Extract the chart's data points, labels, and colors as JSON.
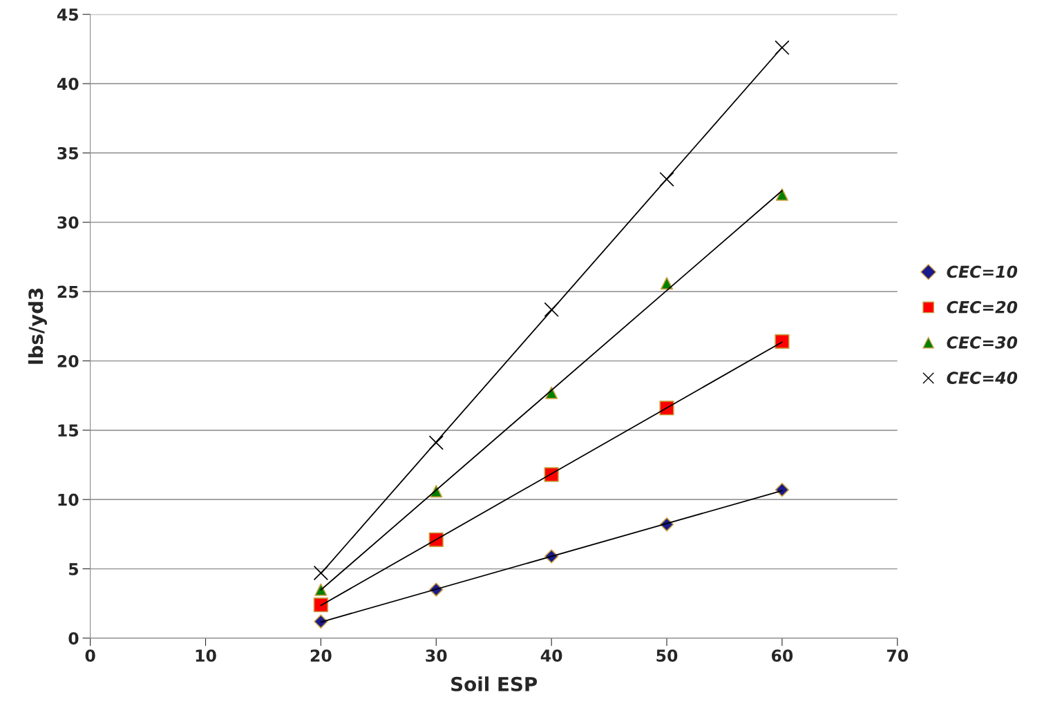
{
  "chart_data": {
    "type": "scatter",
    "xlabel": "Soil ESP",
    "ylabel": "lbs/yd3",
    "xlim": [
      0,
      70
    ],
    "xticks": [
      0,
      10,
      20,
      30,
      40,
      50,
      60,
      70
    ],
    "ylim": [
      0,
      45
    ],
    "yticks": [
      0,
      5,
      10,
      15,
      20,
      25,
      30,
      35,
      40,
      45
    ],
    "grid": "y",
    "legend": "right",
    "series": [
      {
        "name": "CEC=10",
        "color": "#1a1a8c",
        "marker": "diamond",
        "x": [
          20,
          30,
          40,
          50,
          60
        ],
        "values": [
          1.2,
          3.5,
          5.9,
          8.2,
          10.7
        ]
      },
      {
        "name": "CEC=20",
        "color": "#ff0000",
        "marker": "square",
        "x": [
          20,
          30,
          40,
          50,
          60
        ],
        "values": [
          2.4,
          7.1,
          11.8,
          16.6,
          21.4
        ]
      },
      {
        "name": "CEC=30",
        "color": "#008000",
        "marker": "triangle",
        "x": [
          20,
          30,
          40,
          50,
          60
        ],
        "values": [
          3.5,
          10.6,
          17.7,
          25.6,
          32.0
        ]
      },
      {
        "name": "CEC=40",
        "color": "#000000",
        "marker": "cross",
        "x": [
          20,
          30,
          40,
          50,
          60
        ],
        "values": [
          4.7,
          14.1,
          23.7,
          33.1,
          42.6
        ]
      },
      {
        "type": "line",
        "color": "#000000",
        "marker": "none",
        "x": [
          20,
          60
        ],
        "values": [
          1.16,
          10.64
        ]
      },
      {
        "type": "line",
        "color": "#000000",
        "marker": "none",
        "x": [
          20,
          60
        ],
        "values": [
          2.36,
          21.36
        ]
      },
      {
        "type": "line",
        "color": "#000000",
        "marker": "none",
        "x": [
          20,
          60
        ],
        "values": [
          3.48,
          32.28
        ]
      },
      {
        "type": "line",
        "color": "#000000",
        "marker": "none",
        "x": [
          20,
          60
        ],
        "values": [
          4.66,
          42.62
        ]
      }
    ]
  }
}
